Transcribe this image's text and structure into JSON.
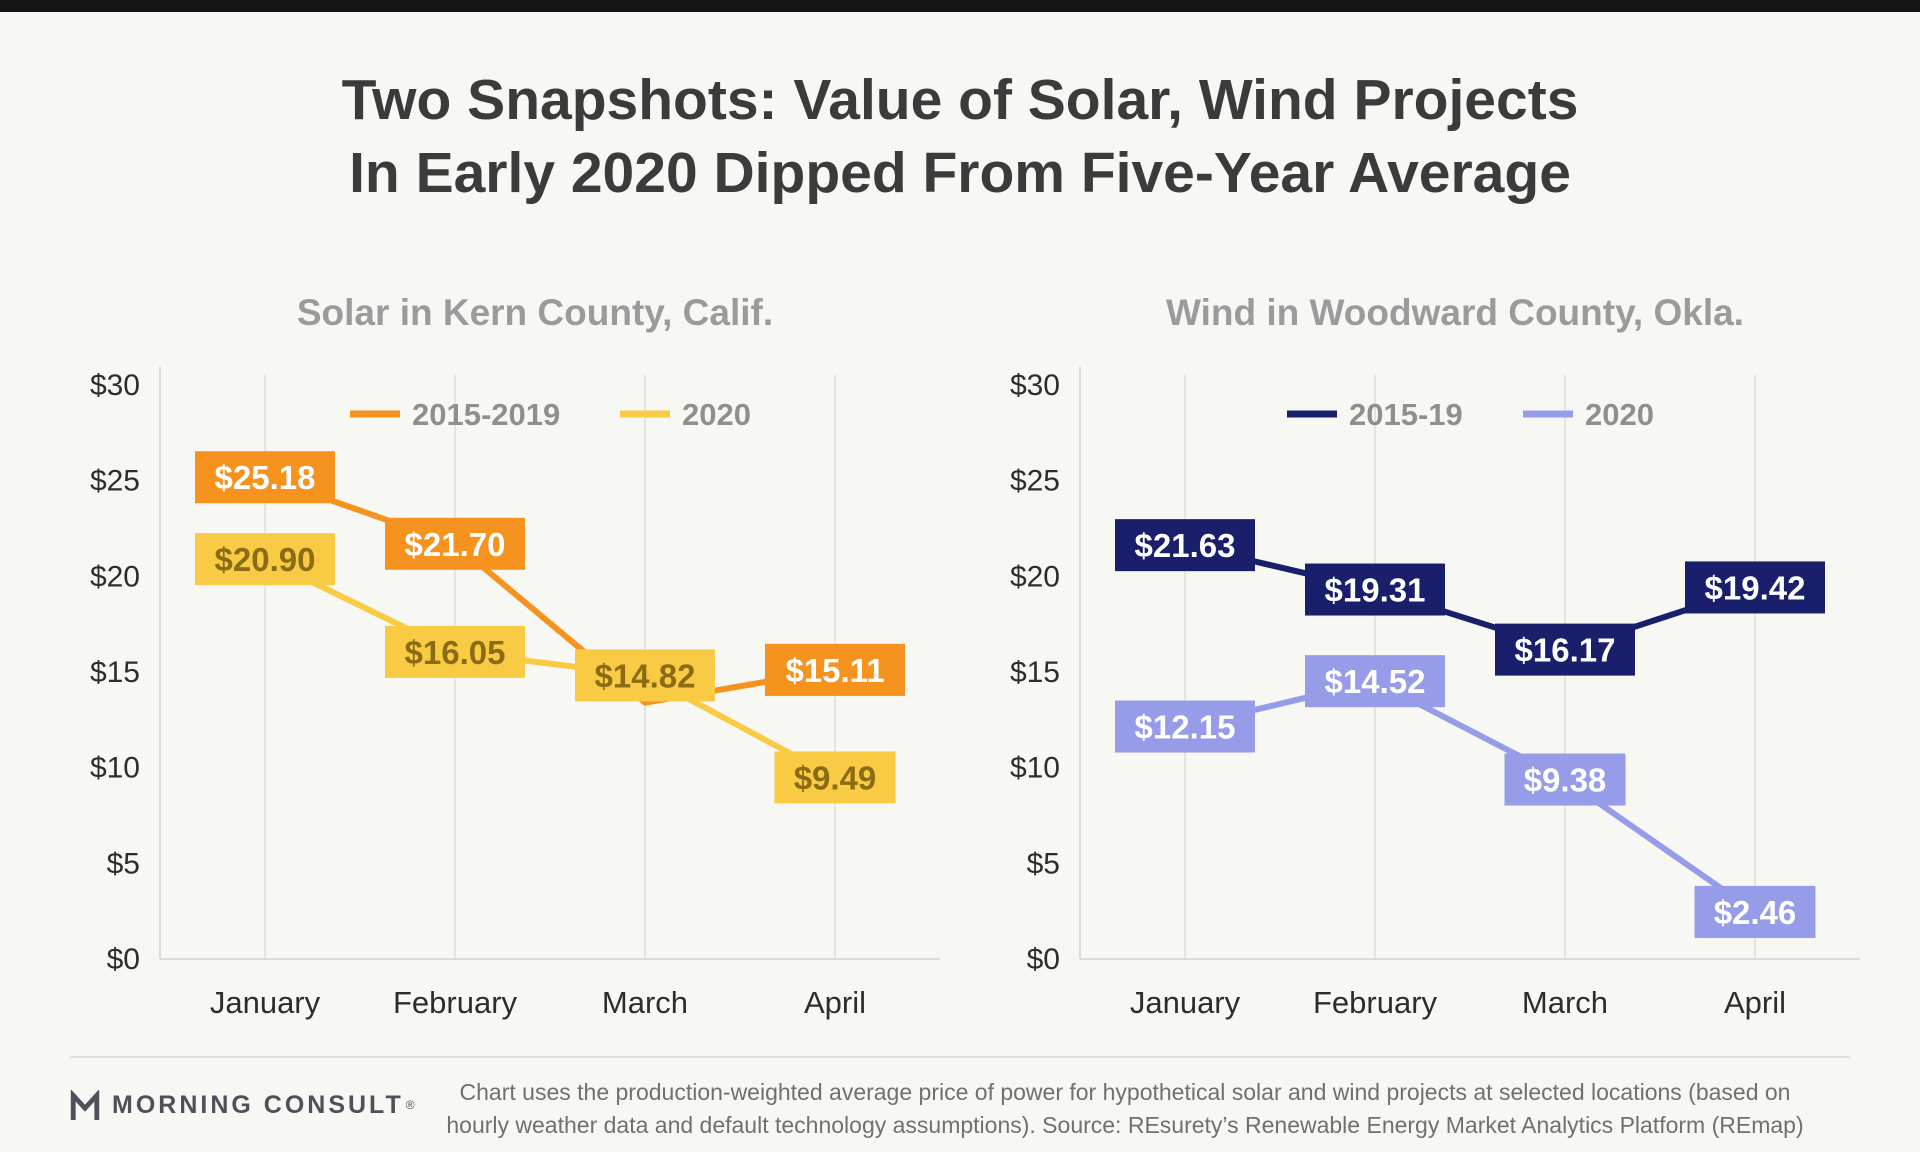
{
  "page": {
    "title_lines": [
      "Two Snapshots: Value of Solar, Wind Projects",
      "In Early 2020 Dipped From Five-Year Average"
    ]
  },
  "chart_data": [
    {
      "type": "line",
      "title": "Solar in Kern County, Calif.",
      "categories": [
        "January",
        "February",
        "March",
        "April"
      ],
      "ylim": [
        0,
        30
      ],
      "ytick_labels": [
        "$0",
        "$5",
        "$10",
        "$15",
        "$20",
        "$25",
        "$30"
      ],
      "grid": "vertical",
      "legend_position": "top-center",
      "series": [
        {
          "name": "2015-2019",
          "color": "#F6921E",
          "label_color": "#FFFFFF",
          "values": [
            25.18,
            21.7,
            13.4,
            15.11
          ],
          "labels": [
            "$25.18",
            "$21.70",
            "",
            "$15.11"
          ]
        },
        {
          "name": "2020",
          "color": "#F9CB45",
          "label_color": "#8A6C15",
          "values": [
            20.9,
            16.05,
            14.82,
            9.49
          ],
          "labels": [
            "$20.90",
            "$16.05",
            "$14.82",
            "$9.49"
          ]
        }
      ]
    },
    {
      "type": "line",
      "title": "Wind in Woodward County, Okla.",
      "categories": [
        "January",
        "February",
        "March",
        "April"
      ],
      "ylim": [
        0,
        30
      ],
      "ytick_labels": [
        "$0",
        "$5",
        "$10",
        "$15",
        "$20",
        "$25",
        "$30"
      ],
      "grid": "vertical",
      "legend_position": "top-center",
      "series": [
        {
          "name": "2015-19",
          "color": "#1A1F6B",
          "label_color": "#FFFFFF",
          "values": [
            21.63,
            19.31,
            16.17,
            19.42
          ],
          "labels": [
            "$21.63",
            "$19.31",
            "$16.17",
            "$19.42"
          ]
        },
        {
          "name": "2020",
          "color": "#969CE8",
          "label_color": "#FFFFFF",
          "values": [
            12.15,
            14.52,
            9.38,
            2.46
          ],
          "labels": [
            "$12.15",
            "$14.52",
            "$9.38",
            "$2.46"
          ]
        }
      ]
    }
  ],
  "footer": {
    "brand": "MORNING CONSULT",
    "brand_mark": "®",
    "note_lines": [
      "Chart uses the production-weighted average price of power for hypothetical solar and wind projects at selected locations (based on",
      "hourly weather data and default technology assumptions). Source: REsurety’s Renewable Energy Market Analytics Platform (REmap)"
    ]
  }
}
